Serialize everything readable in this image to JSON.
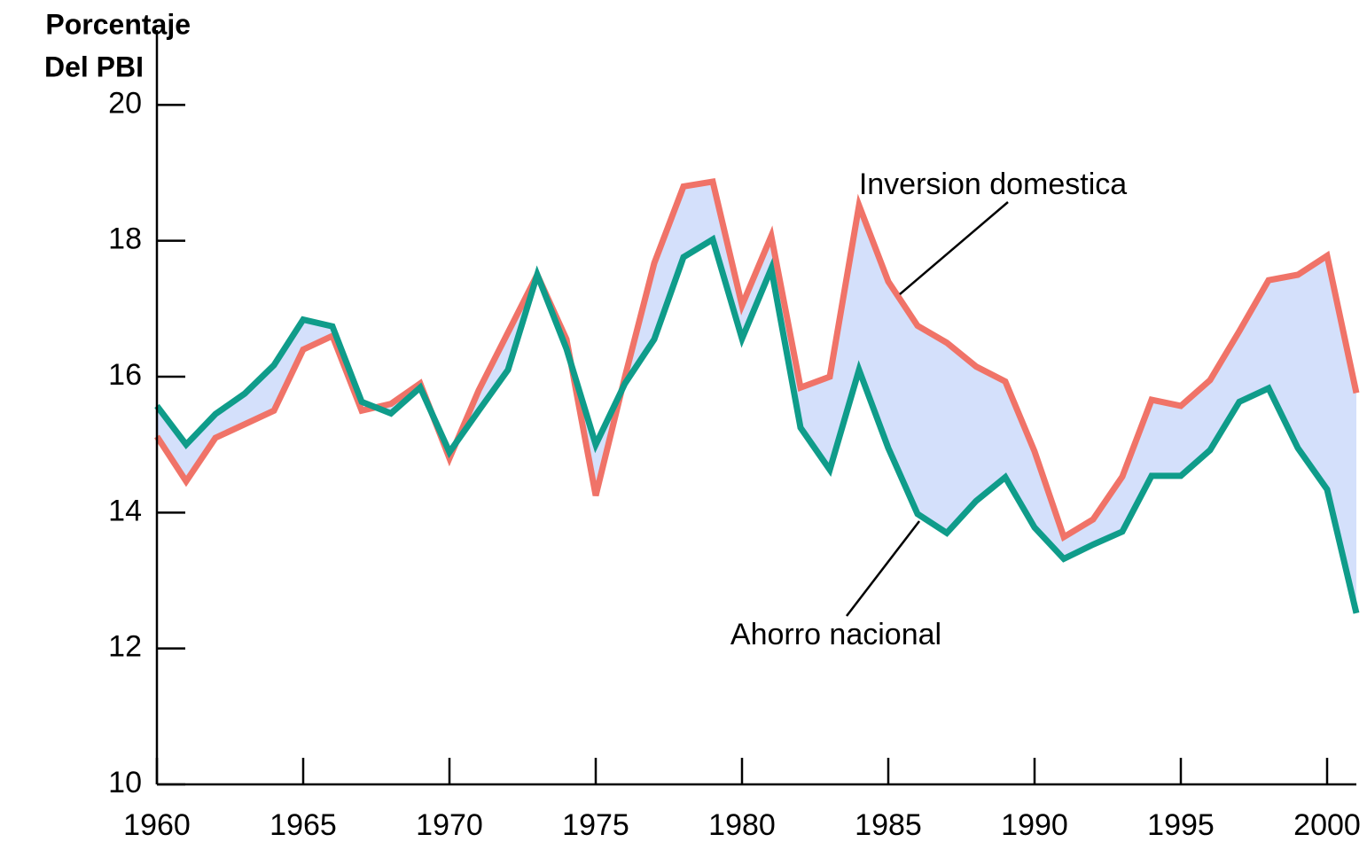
{
  "chart_data": {
    "type": "line",
    "y_label": [
      "Porcentaje",
      "Del PBI"
    ],
    "x": [
      1960,
      1961,
      1962,
      1963,
      1964,
      1965,
      1966,
      1967,
      1968,
      1969,
      1970,
      1971,
      1972,
      1973,
      1974,
      1975,
      1976,
      1977,
      1978,
      1979,
      1980,
      1981,
      1982,
      1983,
      1984,
      1985,
      1986,
      1987,
      1988,
      1989,
      1990,
      1991,
      1992,
      1993,
      1994,
      1995,
      1996,
      1997,
      1998,
      1999,
      2000,
      2001
    ],
    "series": [
      {
        "name": "Inversion domestica",
        "color": "#f07368",
        "values": [
          15.12,
          14.46,
          15.1,
          15.3,
          15.5,
          16.4,
          16.6,
          15.5,
          15.6,
          15.9,
          14.8,
          15.8,
          16.65,
          17.5,
          16.55,
          14.25,
          16.0,
          17.67,
          18.8,
          18.87,
          17.05,
          18.07,
          15.84,
          16.0,
          18.52,
          17.4,
          16.75,
          16.5,
          16.15,
          15.93,
          14.9,
          13.64,
          13.9,
          14.53,
          15.66,
          15.57,
          15.95,
          16.67,
          17.42,
          17.5,
          17.78,
          15.76
        ]
      },
      {
        "name": "Ahorro nacional",
        "color": "#0f9c8a",
        "values": [
          15.57,
          15.0,
          15.45,
          15.75,
          16.17,
          16.84,
          16.74,
          15.63,
          15.46,
          15.84,
          14.89,
          15.5,
          16.1,
          17.5,
          16.41,
          15.0,
          15.9,
          16.55,
          17.76,
          18.02,
          16.56,
          17.59,
          15.25,
          14.63,
          16.1,
          14.95,
          13.98,
          13.7,
          14.17,
          14.52,
          13.78,
          13.32,
          13.53,
          13.72,
          14.54,
          14.54,
          14.92,
          15.63,
          15.83,
          14.95,
          14.34,
          12.52
        ]
      }
    ],
    "fill_color": "#d4e0fb",
    "xlim": [
      1960,
      2001
    ],
    "ylim": [
      10,
      21.1
    ],
    "xticks": [
      1960,
      1965,
      1970,
      1975,
      1980,
      1985,
      1990,
      1995,
      2000
    ],
    "yticks": [
      10,
      12,
      14,
      16,
      18,
      20
    ]
  }
}
